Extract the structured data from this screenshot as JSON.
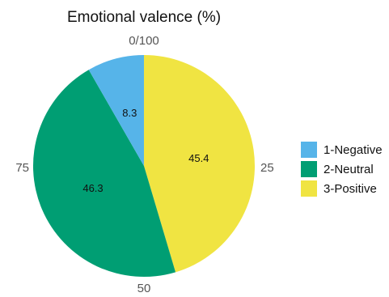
{
  "chart_data": {
    "type": "pie",
    "title": "Emotional valence (%)",
    "categories": [
      "1-Negative",
      "2-Neutral",
      "3-Positive"
    ],
    "values": [
      8.3,
      46.3,
      45.4
    ],
    "value_labels": [
      "8.3",
      "46.3",
      "45.4"
    ],
    "colors": [
      "#56B4E9",
      "#009E73",
      "#F0E442"
    ],
    "angular_ticks": [
      "0/100",
      "25",
      "50",
      "75"
    ],
    "direction": "clockwise from top, 0/100 at top",
    "slice_order": "3-Positive clockwise from 0, then 2-Neutral, then 1-Negative",
    "legend_position": "right",
    "grid": false
  }
}
